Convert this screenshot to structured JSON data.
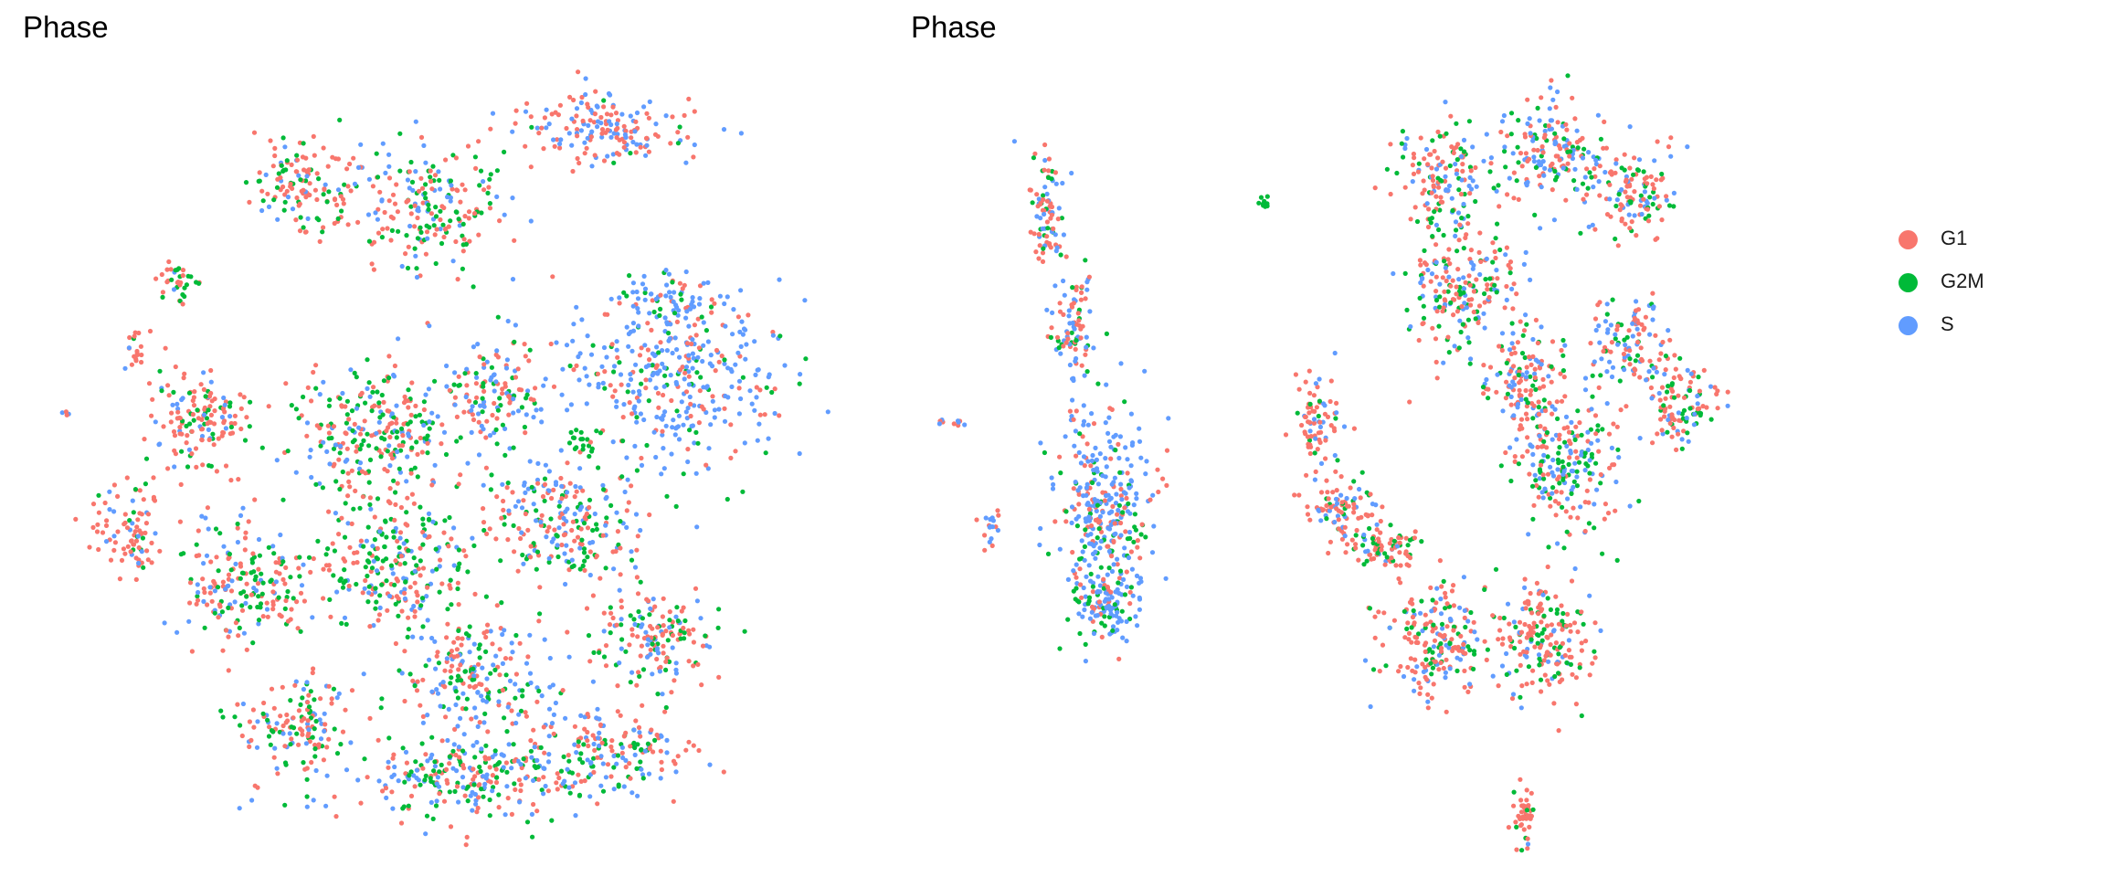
{
  "chart_data": [
    {
      "type": "scatter",
      "title": "Phase",
      "xlabel": "",
      "ylabel": "",
      "axes_visible": false,
      "grid": false,
      "series": [
        {
          "name": "G1",
          "color": "#F8766D"
        },
        {
          "name": "G2M",
          "color": "#00BA38"
        },
        {
          "name": "S",
          "color": "#619CFF"
        }
      ]
    },
    {
      "type": "scatter",
      "title": "Phase",
      "xlabel": "",
      "ylabel": "",
      "axes_visible": false,
      "grid": false,
      "series": [
        {
          "name": "G1",
          "color": "#F8766D"
        },
        {
          "name": "G2M",
          "color": "#00BA38"
        },
        {
          "name": "S",
          "color": "#619CFF"
        }
      ]
    }
  ],
  "legend": {
    "position": "right",
    "items": [
      {
        "label": "G1",
        "color": "#F8766D"
      },
      {
        "label": "G2M",
        "color": "#00BA38"
      },
      {
        "label": "S",
        "color": "#619CFF"
      }
    ]
  }
}
